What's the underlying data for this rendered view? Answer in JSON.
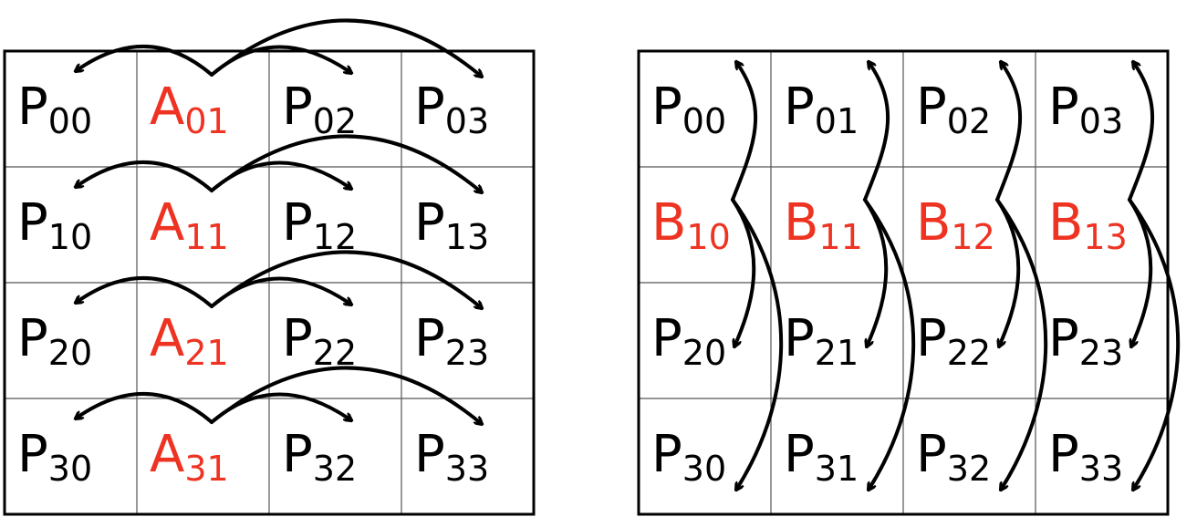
{
  "colors": {
    "normal_text": "#000000",
    "highlight_text": "#ee3322",
    "grid_line": "#555555",
    "border": "#000000",
    "arrow": "#000000"
  },
  "left_grid": {
    "cells": [
      [
        {
          "main": "P",
          "sub": "00",
          "highlight": false
        },
        {
          "main": "A",
          "sub": "01",
          "highlight": true
        },
        {
          "main": "P",
          "sub": "02",
          "highlight": false
        },
        {
          "main": "P",
          "sub": "03",
          "highlight": false
        }
      ],
      [
        {
          "main": "P",
          "sub": "10",
          "highlight": false
        },
        {
          "main": "A",
          "sub": "11",
          "highlight": true
        },
        {
          "main": "P",
          "sub": "12",
          "highlight": false
        },
        {
          "main": "P",
          "sub": "13",
          "highlight": false
        }
      ],
      [
        {
          "main": "P",
          "sub": "20",
          "highlight": false
        },
        {
          "main": "A",
          "sub": "21",
          "highlight": true
        },
        {
          "main": "P",
          "sub": "22",
          "highlight": false
        },
        {
          "main": "P",
          "sub": "23",
          "highlight": false
        }
      ],
      [
        {
          "main": "P",
          "sub": "30",
          "highlight": false
        },
        {
          "main": "A",
          "sub": "31",
          "highlight": true
        },
        {
          "main": "P",
          "sub": "32",
          "highlight": false
        },
        {
          "main": "P",
          "sub": "33",
          "highlight": false
        }
      ]
    ],
    "broadcast": "row"
  },
  "right_grid": {
    "cells": [
      [
        {
          "main": "P",
          "sub": "00",
          "highlight": false
        },
        {
          "main": "P",
          "sub": "01",
          "highlight": false
        },
        {
          "main": "P",
          "sub": "02",
          "highlight": false
        },
        {
          "main": "P",
          "sub": "03",
          "highlight": false
        }
      ],
      [
        {
          "main": "B",
          "sub": "10",
          "highlight": true
        },
        {
          "main": "B",
          "sub": "11",
          "highlight": true
        },
        {
          "main": "B",
          "sub": "12",
          "highlight": true
        },
        {
          "main": "B",
          "sub": "13",
          "highlight": true
        }
      ],
      [
        {
          "main": "P",
          "sub": "20",
          "highlight": false
        },
        {
          "main": "P",
          "sub": "21",
          "highlight": false
        },
        {
          "main": "P",
          "sub": "22",
          "highlight": false
        },
        {
          "main": "P",
          "sub": "23",
          "highlight": false
        }
      ],
      [
        {
          "main": "P",
          "sub": "30",
          "highlight": false
        },
        {
          "main": "P",
          "sub": "31",
          "highlight": false
        },
        {
          "main": "P",
          "sub": "32",
          "highlight": false
        },
        {
          "main": "P",
          "sub": "33",
          "highlight": false
        }
      ]
    ],
    "broadcast": "column"
  }
}
